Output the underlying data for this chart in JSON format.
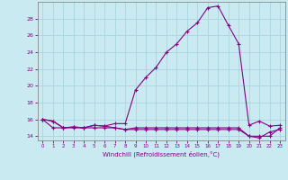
{
  "xlabel": "Windchill (Refroidissement éolien,°C)",
  "background_color": "#c8eaf0",
  "grid_color": "#aad4dc",
  "line_color": "#880088",
  "x_hours": [
    0,
    1,
    2,
    3,
    4,
    5,
    6,
    7,
    8,
    9,
    10,
    11,
    12,
    13,
    14,
    15,
    16,
    17,
    18,
    19,
    20,
    21,
    22,
    23
  ],
  "temp_line": [
    16.0,
    15.8,
    15.0,
    15.1,
    15.0,
    15.3,
    15.2,
    15.5,
    15.5,
    19.5,
    21.0,
    22.2,
    24.0,
    25.0,
    26.5,
    27.5,
    29.3,
    29.5,
    27.2,
    25.0,
    15.3,
    15.8,
    15.2,
    15.3
  ],
  "windchill_line": [
    16.0,
    15.8,
    15.0,
    15.1,
    15.0,
    15.3,
    15.2,
    15.0,
    14.8,
    15.0,
    15.0,
    15.0,
    15.0,
    15.0,
    15.0,
    15.0,
    15.0,
    15.0,
    15.0,
    15.0,
    14.0,
    14.0,
    14.0,
    15.0
  ],
  "min_line": [
    16.0,
    15.0,
    15.0,
    15.0,
    15.0,
    15.0,
    15.0,
    15.0,
    14.8,
    14.8,
    14.8,
    14.8,
    14.8,
    14.8,
    14.8,
    14.8,
    14.8,
    14.8,
    14.8,
    14.8,
    14.0,
    13.8,
    14.5,
    14.8
  ],
  "ylim": [
    13.5,
    30.0
  ],
  "yticks": [
    14,
    16,
    18,
    20,
    22,
    24,
    26,
    28
  ],
  "xticks": [
    0,
    1,
    2,
    3,
    4,
    5,
    6,
    7,
    8,
    9,
    10,
    11,
    12,
    13,
    14,
    15,
    16,
    17,
    18,
    19,
    20,
    21,
    22,
    23
  ]
}
